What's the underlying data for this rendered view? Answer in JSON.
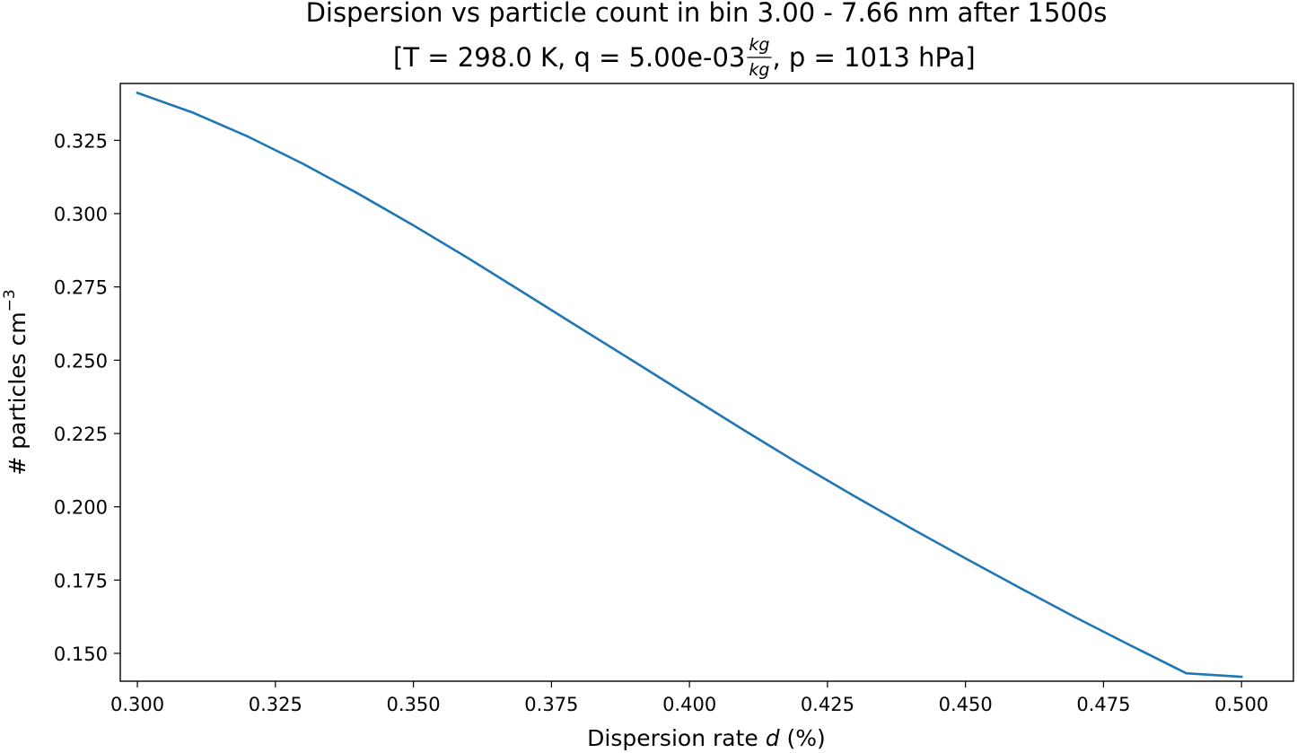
{
  "chart_data": {
    "type": "line",
    "title": "Dispersion vs particle count in bin 3.00 - 7.66 nm after 1500s",
    "subtitle": {
      "before": "[T = 298.0 K, q = 5.00e-03 ",
      "frac_num": "kg",
      "frac_den": "kg",
      "after": ", p = 1013 hPa]"
    },
    "xlabel": {
      "before": "Dispersion rate ",
      "var": "d",
      "after": " (%)"
    },
    "ylabel": {
      "base": "# particles cm",
      "sup": "−3"
    },
    "xlim": [
      0.2969,
      0.5094
    ],
    "ylim": [
      0.1405,
      0.3444
    ],
    "xticks": [
      0.3,
      0.325,
      0.35,
      0.375,
      0.4,
      0.425,
      0.45,
      0.475,
      0.5
    ],
    "xtick_labels": [
      "0.300",
      "0.325",
      "0.350",
      "0.375",
      "0.400",
      "0.425",
      "0.450",
      "0.475",
      "0.500"
    ],
    "yticks": [
      0.15,
      0.175,
      0.2,
      0.225,
      0.25,
      0.275,
      0.3,
      0.325
    ],
    "ytick_labels": [
      "0.150",
      "0.175",
      "0.200",
      "0.225",
      "0.250",
      "0.275",
      "0.300",
      "0.325"
    ],
    "grid": false,
    "series": [
      {
        "color": "#1f77b4",
        "x": [
          0.3,
          0.31,
          0.32,
          0.33,
          0.34,
          0.35,
          0.36,
          0.37,
          0.38,
          0.39,
          0.4,
          0.41,
          0.42,
          0.43,
          0.44,
          0.45,
          0.46,
          0.47,
          0.48,
          0.49,
          0.5
        ],
        "y": [
          0.3412,
          0.3345,
          0.3263,
          0.317,
          0.3068,
          0.296,
          0.2847,
          0.273,
          0.2612,
          0.2495,
          0.2377,
          0.226,
          0.2145,
          0.2035,
          0.1928,
          0.1824,
          0.1722,
          0.1622,
          0.1526,
          0.1432,
          0.142
        ]
      }
    ]
  }
}
